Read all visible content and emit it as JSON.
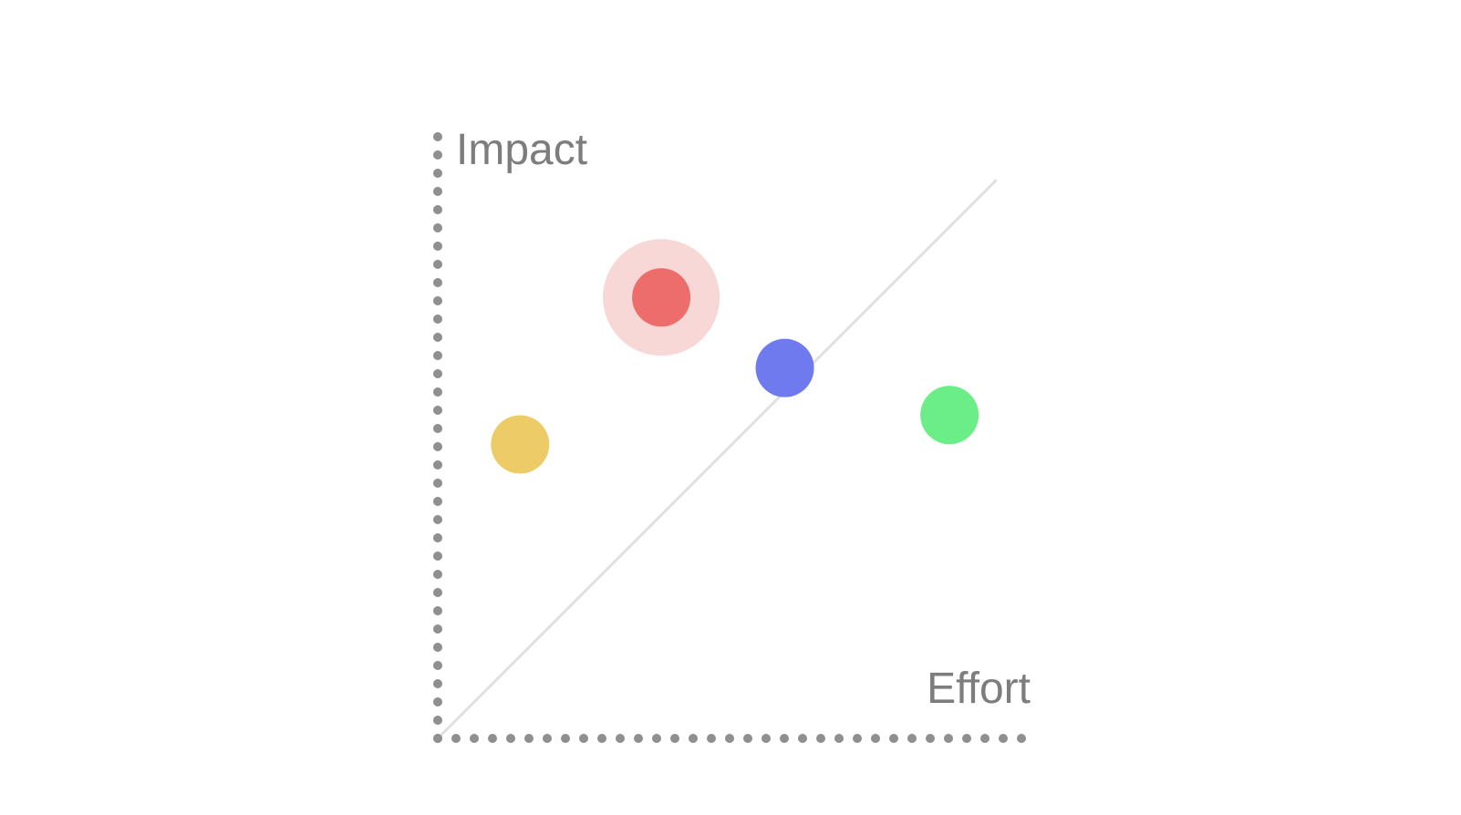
{
  "chart_data": {
    "type": "scatter",
    "xlabel": "Effort",
    "ylabel": "Impact",
    "xlim": [
      0,
      1
    ],
    "ylim": [
      0,
      1
    ],
    "grid": false,
    "reference_line": {
      "from": [
        0,
        0
      ],
      "to": [
        0.95,
        0.95
      ]
    },
    "points": [
      {
        "x": 0.14,
        "y": 0.5,
        "color": "#EDCC67",
        "highlighted": false
      },
      {
        "x": 0.38,
        "y": 0.75,
        "color": "#EC6D6B",
        "highlighted": true,
        "halo_color": "#F8D7D7"
      },
      {
        "x": 0.59,
        "y": 0.63,
        "color": "#6E7AEE",
        "highlighted": false
      },
      {
        "x": 0.87,
        "y": 0.55,
        "color": "#6BEE87",
        "highlighted": false
      }
    ],
    "colors": {
      "axis": "#8F8F8F",
      "label": "#7D7D7D",
      "reference_line": "#E0E0E0"
    }
  }
}
